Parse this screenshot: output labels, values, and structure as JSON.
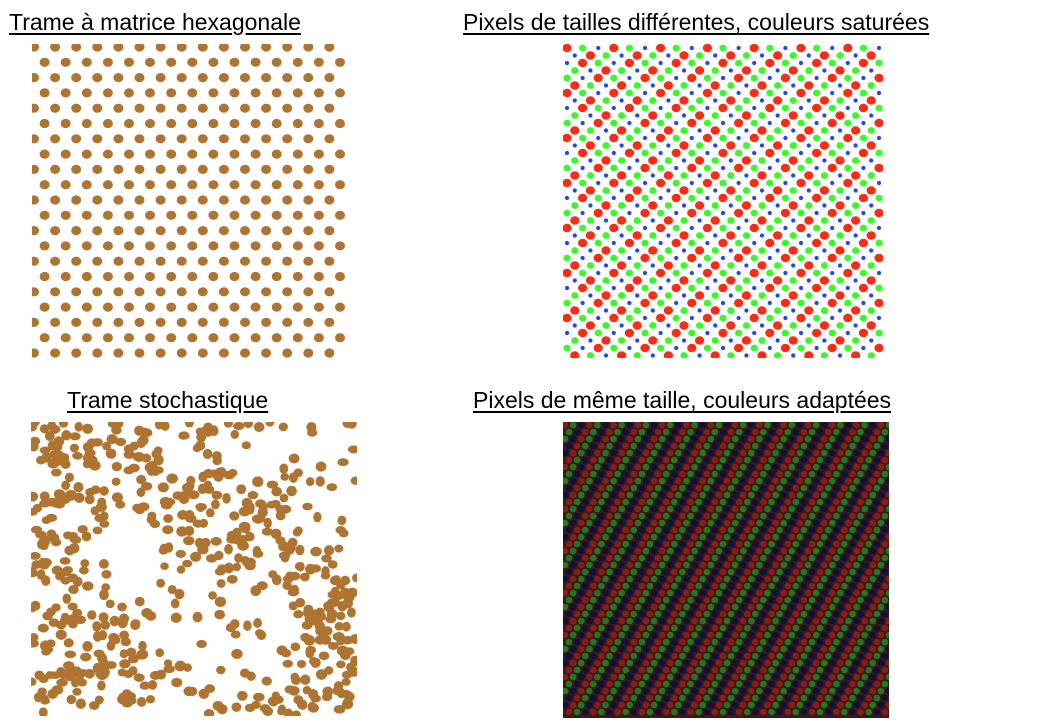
{
  "panels": {
    "hexagonal": {
      "caption": "Trame à matrice hexagonale",
      "dot_color": "#b07431"
    },
    "rgb_saturated": {
      "caption": "Pixels de tailles différentes, couleurs saturées",
      "colors": {
        "red": "#ff2a12",
        "green": "#33ff22",
        "blue": "#2244ff"
      }
    },
    "stochastic": {
      "caption": "Trame stochastique",
      "dot_color": "#b07431"
    },
    "rgb_adapted": {
      "caption": "Pixels de même taille, couleurs adaptées",
      "colors": {
        "red": "#8c1c1c",
        "green": "#1e7a1e",
        "blue": "#101040"
      }
    }
  }
}
